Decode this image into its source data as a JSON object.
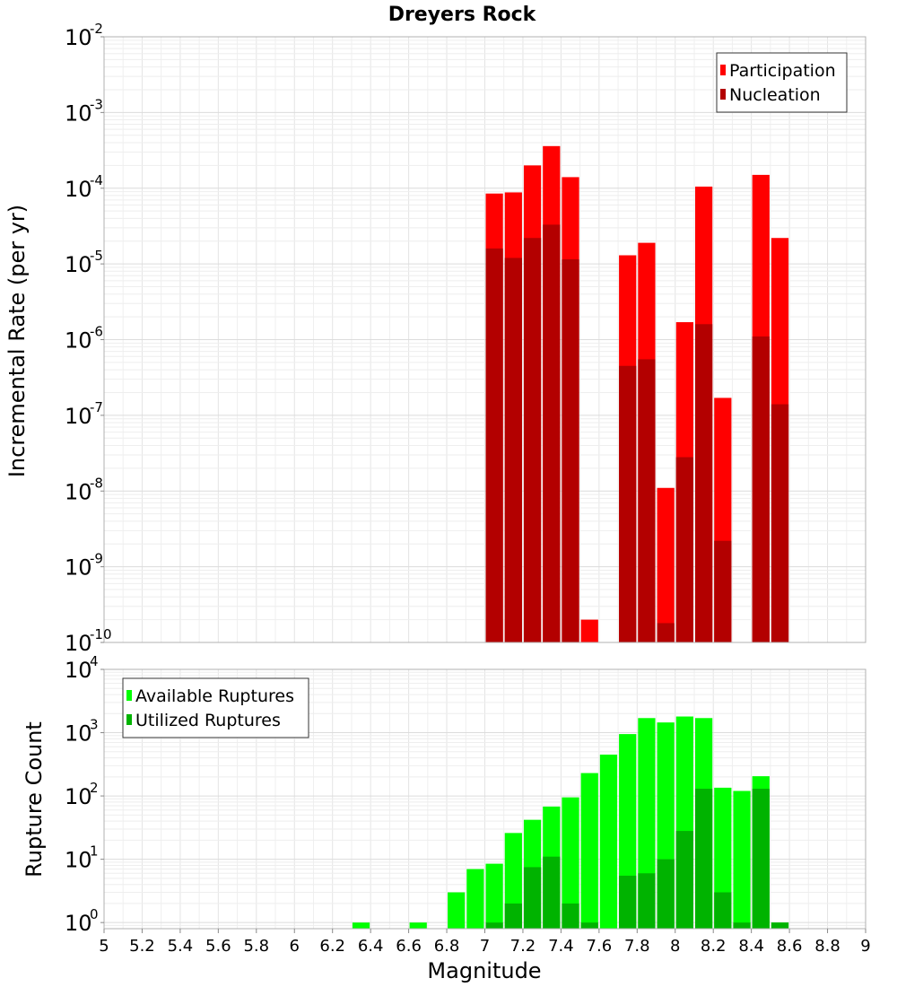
{
  "chart_data": [
    {
      "type": "bar",
      "title": "Dreyers Rock",
      "ylabel": "Incremental Rate (per yr)",
      "xlabel": "",
      "yscale": "log",
      "ylim": [
        1e-10,
        0.01
      ],
      "xlim": [
        5,
        9
      ],
      "legend_position": "top-right",
      "bar_width": 0.1,
      "y_ticks": [
        {
          "base": "10",
          "exp": "-10",
          "value": 1e-10
        },
        {
          "base": "10",
          "exp": "-9",
          "value": 1e-09
        },
        {
          "base": "10",
          "exp": "-8",
          "value": 1e-08
        },
        {
          "base": "10",
          "exp": "-7",
          "value": 1e-07
        },
        {
          "base": "10",
          "exp": "-6",
          "value": 1e-06
        },
        {
          "base": "10",
          "exp": "-5",
          "value": 1e-05
        },
        {
          "base": "10",
          "exp": "-4",
          "value": 0.0001
        },
        {
          "base": "10",
          "exp": "-3",
          "value": 0.001
        },
        {
          "base": "10",
          "exp": "-2",
          "value": 0.01
        }
      ],
      "series": [
        {
          "name": "Participation",
          "color": "#ff0000",
          "points": [
            [
              7.05,
              8.5e-05
            ],
            [
              7.15,
              8.8e-05
            ],
            [
              7.25,
              0.0002
            ],
            [
              7.35,
              0.00036
            ],
            [
              7.45,
              0.00014
            ],
            [
              7.55,
              2e-10
            ],
            [
              7.75,
              1.3e-05
            ],
            [
              7.85,
              1.9e-05
            ],
            [
              7.95,
              1.1e-08
            ],
            [
              8.05,
              1.7e-06
            ],
            [
              8.15,
              0.000105
            ],
            [
              8.25,
              1.7e-07
            ],
            [
              8.45,
              0.00015
            ],
            [
              8.55,
              2.2e-05
            ]
          ]
        },
        {
          "name": "Nucleation",
          "color": "#b30000",
          "points": [
            [
              7.05,
              1.6e-05
            ],
            [
              7.15,
              1.2e-05
            ],
            [
              7.25,
              2.2e-05
            ],
            [
              7.35,
              3.3e-05
            ],
            [
              7.45,
              1.15e-05
            ],
            [
              7.75,
              4.5e-07
            ],
            [
              7.85,
              5.5e-07
            ],
            [
              7.95,
              1.8e-10
            ],
            [
              8.05,
              2.8e-08
            ],
            [
              8.15,
              1.6e-06
            ],
            [
              8.25,
              2.2e-09
            ],
            [
              8.45,
              1.1e-06
            ],
            [
              8.55,
              1.4e-07
            ]
          ]
        }
      ]
    },
    {
      "type": "bar",
      "title": "",
      "ylabel": "Rupture Count",
      "xlabel": "Magnitude",
      "yscale": "log",
      "ylim": [
        0.8,
        10000
      ],
      "xlim": [
        5,
        9
      ],
      "legend_position": "top-left",
      "bar_width": 0.1,
      "x_ticks": [
        "5",
        "5.2",
        "5.4",
        "5.6",
        "5.8",
        "6",
        "6.2",
        "6.4",
        "6.6",
        "6.8",
        "7",
        "7.2",
        "7.4",
        "7.6",
        "7.8",
        "8",
        "8.2",
        "8.4",
        "8.6",
        "8.8",
        "9"
      ],
      "y_ticks": [
        {
          "base": "10",
          "exp": "0",
          "value": 1
        },
        {
          "base": "10",
          "exp": "1",
          "value": 10
        },
        {
          "base": "10",
          "exp": "2",
          "value": 100
        },
        {
          "base": "10",
          "exp": "3",
          "value": 1000
        },
        {
          "base": "10",
          "exp": "4",
          "value": 10000
        }
      ],
      "series": [
        {
          "name": "Available Ruptures",
          "color": "#00ff00",
          "points": [
            [
              6.35,
              1
            ],
            [
              6.65,
              1
            ],
            [
              6.85,
              3
            ],
            [
              6.95,
              7
            ],
            [
              7.05,
              8.5
            ],
            [
              7.15,
              26
            ],
            [
              7.25,
              42
            ],
            [
              7.35,
              68
            ],
            [
              7.45,
              95
            ],
            [
              7.55,
              230
            ],
            [
              7.65,
              450
            ],
            [
              7.75,
              950
            ],
            [
              7.85,
              1700
            ],
            [
              7.95,
              1450
            ],
            [
              8.05,
              1800
            ],
            [
              8.15,
              1700
            ],
            [
              8.25,
              135
            ],
            [
              8.35,
              120
            ],
            [
              8.45,
              205
            ],
            [
              8.55,
              1
            ]
          ]
        },
        {
          "name": "Utilized Ruptures",
          "color": "#00b300",
          "points": [
            [
              7.05,
              1
            ],
            [
              7.15,
              2
            ],
            [
              7.25,
              7.5
            ],
            [
              7.35,
              11
            ],
            [
              7.45,
              2
            ],
            [
              7.55,
              1
            ],
            [
              7.75,
              5.5
            ],
            [
              7.85,
              6
            ],
            [
              7.95,
              10
            ],
            [
              8.05,
              28
            ],
            [
              8.15,
              130
            ],
            [
              8.25,
              3
            ],
            [
              8.35,
              1
            ],
            [
              8.45,
              130
            ],
            [
              8.55,
              1
            ]
          ]
        }
      ]
    }
  ]
}
